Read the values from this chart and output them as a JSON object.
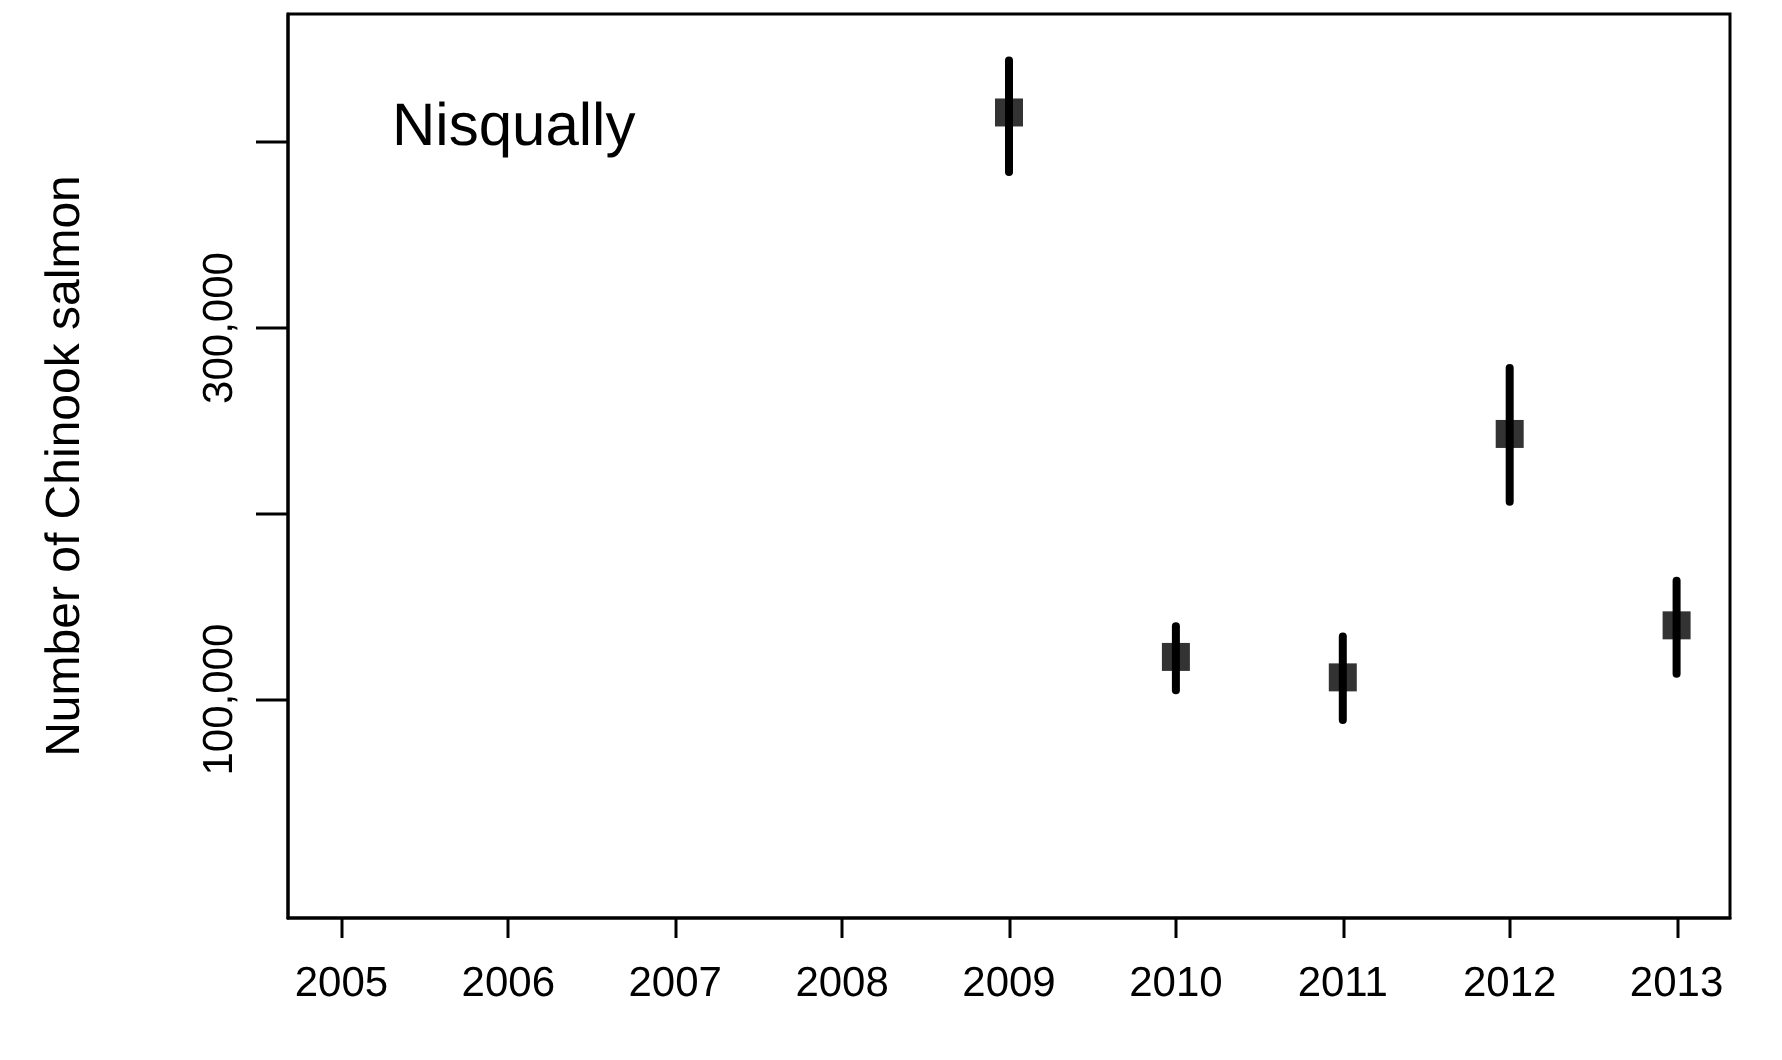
{
  "chart_data": {
    "type": "scatter",
    "ylabel": "Number of Chinook salmon",
    "annotations": [
      "Nisqually"
    ],
    "x": [
      2009,
      2010,
      2011,
      2012,
      2013
    ],
    "series": [
      {
        "color": "#000000",
        "values": [
          416000,
          123000,
          112000,
          243000,
          140000
        ],
        "errors": [
          [
            384000,
            444000
          ],
          [
            105000,
            139500
          ],
          [
            89000,
            134000
          ],
          [
            206500,
            278500
          ],
          [
            114000,
            164000
          ]
        ]
      }
    ],
    "xlim": [
      2004.68,
      2013.32
    ],
    "xticks": [
      2005,
      2006,
      2007,
      2008,
      2009,
      2010,
      2011,
      2012,
      2013
    ],
    "ylim": [
      -17500,
      469000
    ],
    "yticks": [
      {
        "value": 100000,
        "label": "100,000"
      },
      {
        "value": 200000,
        "label": null
      },
      {
        "value": 300000,
        "label": "300,000"
      },
      {
        "value": 400000,
        "label": null
      }
    ],
    "marker": "square",
    "grid": false
  }
}
